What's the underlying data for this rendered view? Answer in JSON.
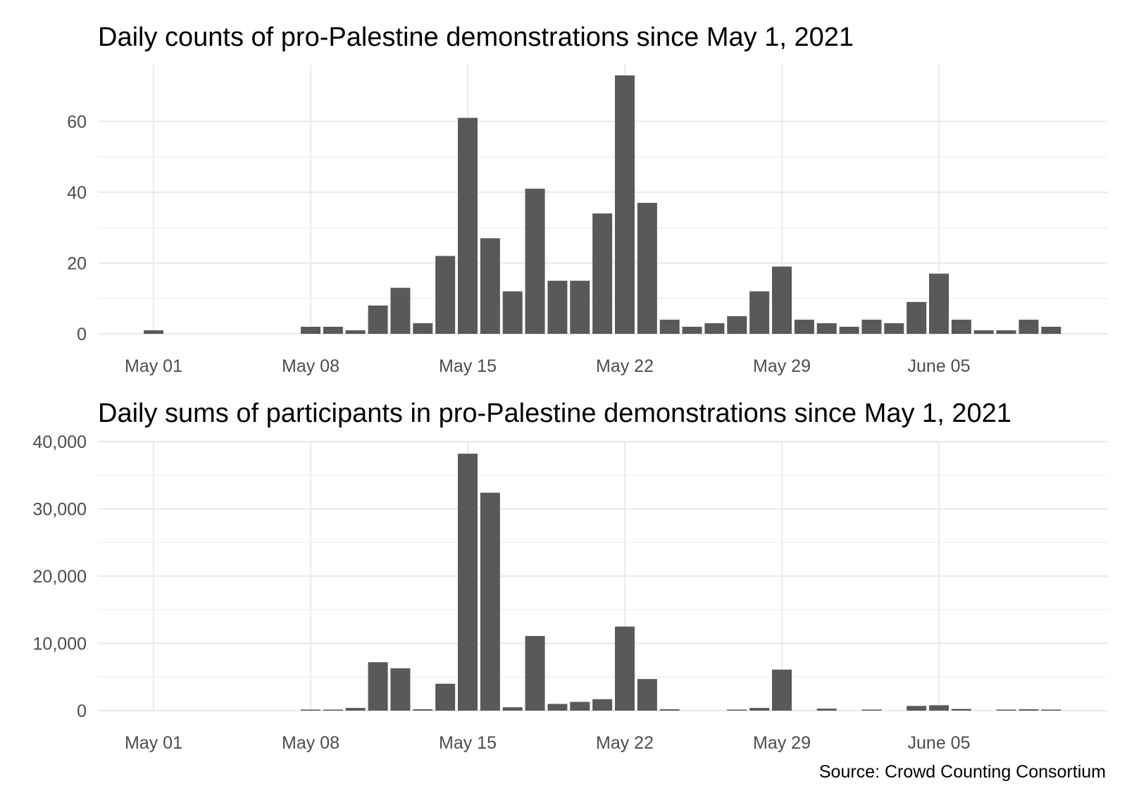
{
  "source": "Source: Crowd Counting Consortium",
  "colors": {
    "bar": "#595959",
    "grid": "#ebebeb",
    "text": "#4d4d4d",
    "background": "#ffffff"
  },
  "chart_data": [
    {
      "type": "bar",
      "title": "Daily counts of pro-Palestine demonstrations since May 1, 2021",
      "xlabel": "",
      "ylabel": "",
      "x_start": "2021-05-01",
      "x_end": "2021-06-09",
      "x_tick_labels": [
        {
          "date": "2021-05-01",
          "label": "May 01"
        },
        {
          "date": "2021-05-08",
          "label": "May 08"
        },
        {
          "date": "2021-05-15",
          "label": "May 15"
        },
        {
          "date": "2021-05-22",
          "label": "May 22"
        },
        {
          "date": "2021-05-29",
          "label": "May 29"
        },
        {
          "date": "2021-06-05",
          "label": "June 05"
        }
      ],
      "y_ticks": [
        0,
        20,
        40,
        60
      ],
      "y_tick_labels": [
        "0",
        "20",
        "40",
        "60"
      ],
      "ylim": [
        0,
        76
      ],
      "grid": true,
      "values": [
        {
          "date": "2021-05-01",
          "value": 1
        },
        {
          "date": "2021-05-08",
          "value": 2
        },
        {
          "date": "2021-05-09",
          "value": 2
        },
        {
          "date": "2021-05-10",
          "value": 1
        },
        {
          "date": "2021-05-11",
          "value": 8
        },
        {
          "date": "2021-05-12",
          "value": 13
        },
        {
          "date": "2021-05-13",
          "value": 3
        },
        {
          "date": "2021-05-14",
          "value": 22
        },
        {
          "date": "2021-05-15",
          "value": 61
        },
        {
          "date": "2021-05-16",
          "value": 27
        },
        {
          "date": "2021-05-17",
          "value": 12
        },
        {
          "date": "2021-05-18",
          "value": 41
        },
        {
          "date": "2021-05-19",
          "value": 15
        },
        {
          "date": "2021-05-20",
          "value": 15
        },
        {
          "date": "2021-05-21",
          "value": 34
        },
        {
          "date": "2021-05-22",
          "value": 73
        },
        {
          "date": "2021-05-23",
          "value": 37
        },
        {
          "date": "2021-05-24",
          "value": 4
        },
        {
          "date": "2021-05-25",
          "value": 2
        },
        {
          "date": "2021-05-26",
          "value": 3
        },
        {
          "date": "2021-05-27",
          "value": 5
        },
        {
          "date": "2021-05-28",
          "value": 12
        },
        {
          "date": "2021-05-29",
          "value": 19
        },
        {
          "date": "2021-05-30",
          "value": 4
        },
        {
          "date": "2021-05-31",
          "value": 3
        },
        {
          "date": "2021-06-01",
          "value": 2
        },
        {
          "date": "2021-06-02",
          "value": 4
        },
        {
          "date": "2021-06-03",
          "value": 3
        },
        {
          "date": "2021-06-04",
          "value": 9
        },
        {
          "date": "2021-06-05",
          "value": 17
        },
        {
          "date": "2021-06-06",
          "value": 4
        },
        {
          "date": "2021-06-07",
          "value": 1
        },
        {
          "date": "2021-06-08",
          "value": 1
        },
        {
          "date": "2021-06-09",
          "value": 4
        },
        {
          "date": "2021-06-10",
          "value": 2
        }
      ]
    },
    {
      "type": "bar",
      "title": "Daily sums of participants in pro-Palestine demonstrations since May 1, 2021",
      "xlabel": "",
      "ylabel": "",
      "x_start": "2021-05-01",
      "x_end": "2021-06-09",
      "x_tick_labels": [
        {
          "date": "2021-05-01",
          "label": "May 01"
        },
        {
          "date": "2021-05-08",
          "label": "May 08"
        },
        {
          "date": "2021-05-15",
          "label": "May 15"
        },
        {
          "date": "2021-05-22",
          "label": "May 22"
        },
        {
          "date": "2021-05-29",
          "label": "May 29"
        },
        {
          "date": "2021-06-05",
          "label": "June 05"
        }
      ],
      "y_ticks": [
        0,
        10000,
        20000,
        30000,
        40000
      ],
      "y_tick_labels": [
        "0",
        "10,000",
        "20,000",
        "30,000",
        "40,000"
      ],
      "ylim": [
        0,
        40000
      ],
      "grid": true,
      "values": [
        {
          "date": "2021-05-08",
          "value": 100
        },
        {
          "date": "2021-05-09",
          "value": 100
        },
        {
          "date": "2021-05-10",
          "value": 400
        },
        {
          "date": "2021-05-11",
          "value": 7200
        },
        {
          "date": "2021-05-12",
          "value": 6300
        },
        {
          "date": "2021-05-13",
          "value": 200
        },
        {
          "date": "2021-05-14",
          "value": 4000
        },
        {
          "date": "2021-05-15",
          "value": 38200
        },
        {
          "date": "2021-05-16",
          "value": 32400
        },
        {
          "date": "2021-05-17",
          "value": 500
        },
        {
          "date": "2021-05-18",
          "value": 11100
        },
        {
          "date": "2021-05-19",
          "value": 1000
        },
        {
          "date": "2021-05-20",
          "value": 1300
        },
        {
          "date": "2021-05-21",
          "value": 1700
        },
        {
          "date": "2021-05-22",
          "value": 12500
        },
        {
          "date": "2021-05-23",
          "value": 4700
        },
        {
          "date": "2021-05-24",
          "value": 200
        },
        {
          "date": "2021-05-27",
          "value": 80
        },
        {
          "date": "2021-05-28",
          "value": 400
        },
        {
          "date": "2021-05-29",
          "value": 6100
        },
        {
          "date": "2021-05-31",
          "value": 300
        },
        {
          "date": "2021-06-02",
          "value": 150
        },
        {
          "date": "2021-06-04",
          "value": 700
        },
        {
          "date": "2021-06-05",
          "value": 800
        },
        {
          "date": "2021-06-06",
          "value": 250
        },
        {
          "date": "2021-06-08",
          "value": 100
        },
        {
          "date": "2021-06-09",
          "value": 200
        },
        {
          "date": "2021-06-10",
          "value": 100
        }
      ]
    }
  ]
}
